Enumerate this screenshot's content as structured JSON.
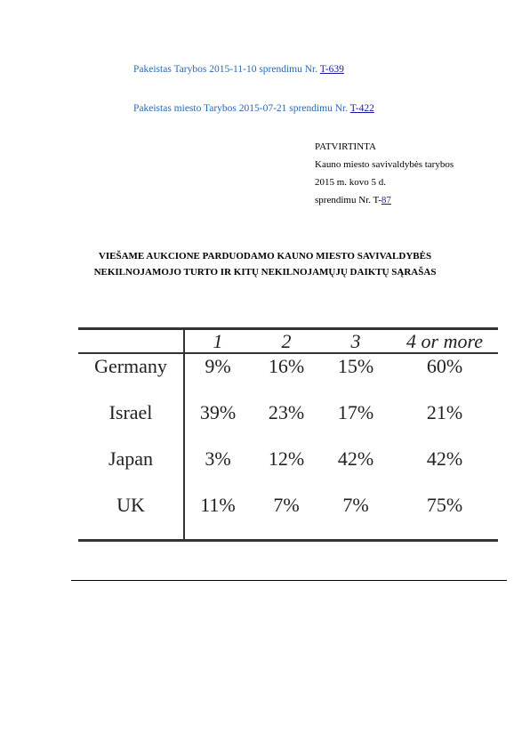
{
  "amendments": [
    {
      "text": "Pakeistas Tarybos 2015-11-10 sprendimu Nr. ",
      "link": "T-639"
    },
    {
      "text": "Pakeistas miesto Tarybos 2015-07-21 sprendimu Nr. ",
      "link": "T-422"
    }
  ],
  "approval": {
    "line1": "PATVIRTINTA",
    "line2": "Kauno miesto savivaldybės tarybos",
    "line3": "2015 m. kovo 5 d.",
    "line4_prefix": "sprendimu Nr. T-",
    "line4_link": "87"
  },
  "title": {
    "line1": "VIEŠAME AUKCIONE PARDUODAMO KAUNO MIESTO SAVIVALDYBĖS",
    "line2": "NEKILNOJAMOJO TURTO IR KITŲ NEKILNOJAMŲJŲ DAIKTŲ SĄRAŠAS"
  },
  "table": {
    "headers": [
      "1",
      "2",
      "3",
      "4 or more"
    ],
    "rows": [
      {
        "label": "Germany",
        "values": [
          "9%",
          "16%",
          "15%",
          "60%"
        ]
      },
      {
        "label": "Israel",
        "values": [
          "39%",
          "23%",
          "17%",
          "21%"
        ]
      },
      {
        "label": "Japan",
        "values": [
          "3%",
          "12%",
          "42%",
          "42%"
        ]
      },
      {
        "label": "UK",
        "values": [
          "11%",
          "7%",
          "7%",
          "75%"
        ]
      }
    ]
  }
}
